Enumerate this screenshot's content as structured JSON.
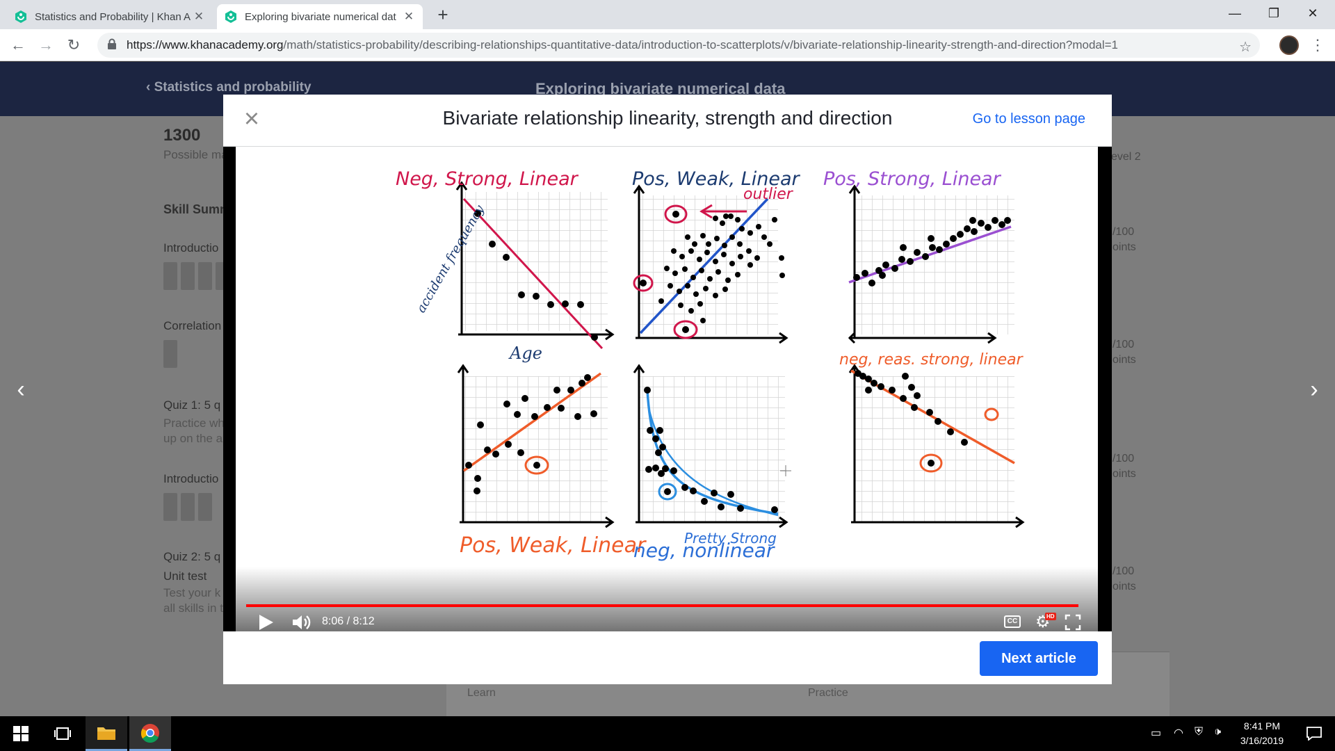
{
  "browser": {
    "tabs": [
      {
        "title": "Statistics and Probability | Khan A",
        "close": "✕"
      },
      {
        "title": "Exploring bivariate numerical dat",
        "close": "✕"
      }
    ],
    "new_tab": "+",
    "url_host": "https://www.khanacademy.org",
    "url_path": "/math/statistics-probability/describing-relationships-quantitative-data/introduction-to-scatterplots/v/bivariate-relationship-linearity-strength-and-direction?modal=1",
    "window_controls": {
      "minimize": "—",
      "maximize": "❐",
      "close": "✕"
    }
  },
  "page": {
    "breadcrumb": "Statistics and probability",
    "header_title": "Exploring bivariate numerical data",
    "mastery_points": "1300",
    "mastery_label": "Possible ma",
    "skill_summary": "Skill Sumn",
    "sections": [
      "Introductio",
      "Correlation",
      "Quiz 1: 5 q",
      "Introductio",
      "Quiz 2: 5 q",
      "Unit test"
    ],
    "quiz_desc": [
      "Practice wh",
      "up on the a"
    ],
    "unit_desc": [
      "Test your k",
      "all skills in t"
    ],
    "right_level": "evel 2",
    "right_points": [
      "/100",
      "oints",
      "/100",
      "oints",
      "/100",
      "oints",
      "/100",
      "oints"
    ],
    "bottom_tabs": [
      "Learn",
      "Practice"
    ]
  },
  "modal": {
    "title": "Bivariate relationship linearity, strength and direction",
    "go_to_lesson": "Go to lesson page",
    "next_button": "Next article",
    "video": {
      "time": "8:06 / 8:12",
      "progress": 0.988,
      "cc": "CC",
      "hd": "HD",
      "board_labels": {
        "p1": "Neg, Strong, Linear",
        "p2": "Pos, Weak, Linear",
        "p2_outlier": "outlier",
        "p3": "Pos, Strong, Linear",
        "p4": "Pos, Weak, Linear",
        "p5a": "Pretty Strong",
        "p5b": "neg, nonlinear",
        "p6": "neg, reas. strong, linear",
        "y_axis_1": "accident frequency",
        "x_axis_1": "Age"
      }
    }
  },
  "taskbar": {
    "time": "8:41 PM",
    "date": "3/16/2019"
  }
}
